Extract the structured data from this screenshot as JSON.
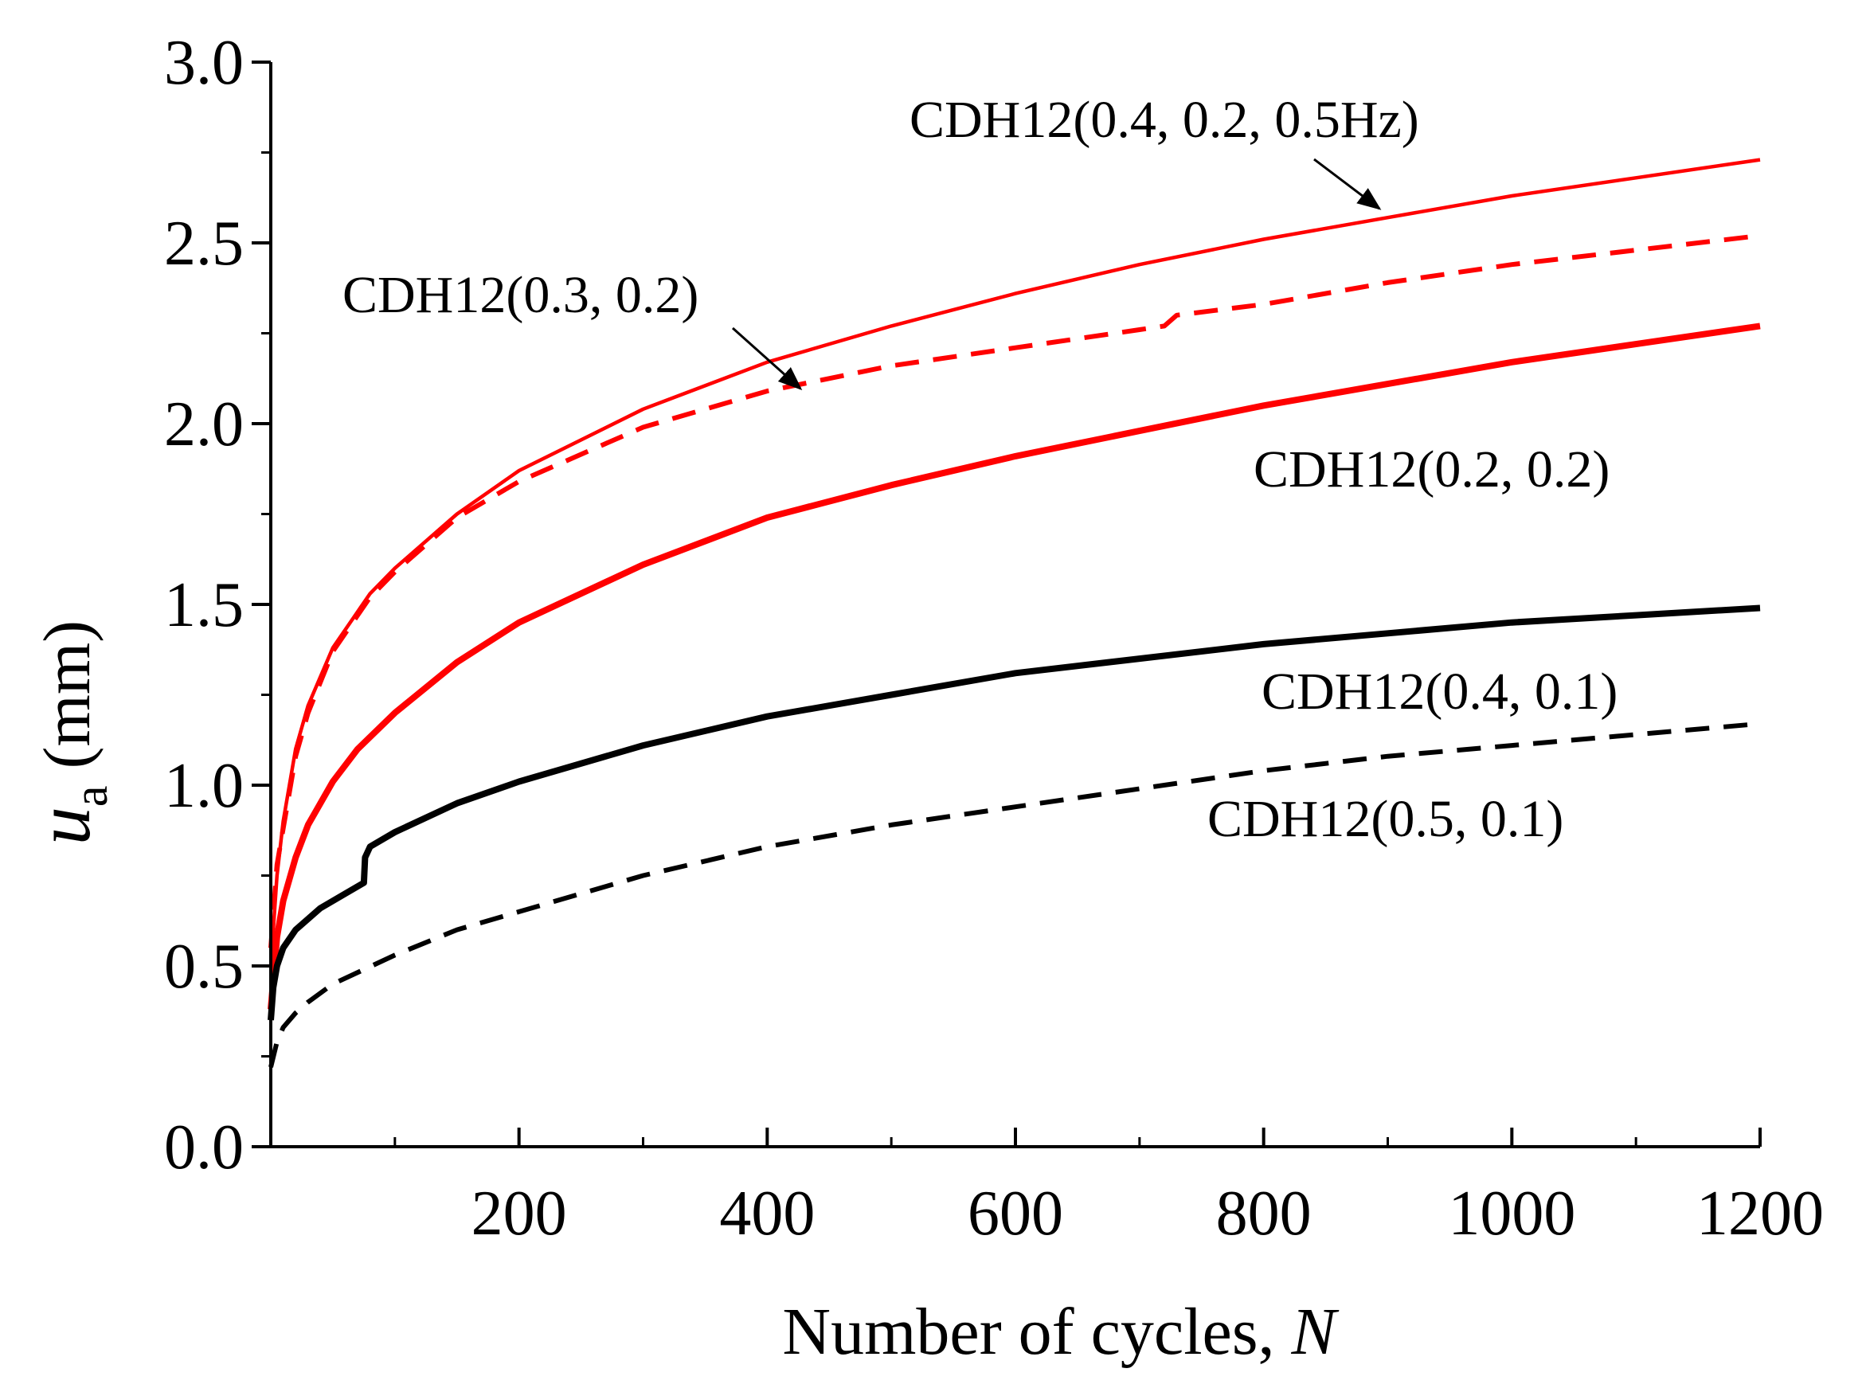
{
  "chart_data": {
    "type": "line",
    "title": "",
    "xlabel": "Number of cycles, ",
    "xlabel_var": "N",
    "ylabel_var": "u",
    "ylabel_sub": "a",
    "ylabel_unit": " (mm)",
    "xlim": [
      0,
      1200
    ],
    "ylim": [
      0.0,
      3.0
    ],
    "xticks": [
      200,
      400,
      600,
      800,
      1000,
      1200
    ],
    "xtick_labels": [
      "200",
      "400",
      "600",
      "800",
      "1000",
      "1200"
    ],
    "yticks": [
      0.0,
      0.5,
      1.0,
      1.5,
      2.0,
      2.5,
      3.0
    ],
    "ytick_labels": [
      "0.0",
      "0.5",
      "1.0",
      "1.5",
      "2.0",
      "2.5",
      "3.0"
    ],
    "grid": false,
    "colors": {
      "red": "#ff0000",
      "black": "#000000"
    },
    "series": [
      {
        "name": "CDH12(0.4, 0.2, 0.5Hz)",
        "color": "#ff0000",
        "style": "solid-thin",
        "x": [
          0,
          5,
          10,
          20,
          30,
          50,
          70,
          80,
          100,
          150,
          200,
          300,
          400,
          500,
          600,
          700,
          800,
          900,
          1000,
          1100,
          1200
        ],
        "y": [
          0.5,
          0.75,
          0.9,
          1.1,
          1.22,
          1.38,
          1.48,
          1.53,
          1.6,
          1.75,
          1.87,
          2.04,
          2.17,
          2.27,
          2.36,
          2.44,
          2.51,
          2.57,
          2.63,
          2.68,
          2.73
        ]
      },
      {
        "name": "CDH12(0.3, 0.2)",
        "color": "#ff0000",
        "style": "dashed",
        "x": [
          0,
          5,
          10,
          20,
          30,
          50,
          70,
          80,
          100,
          150,
          200,
          300,
          400,
          500,
          600,
          700,
          720,
          730,
          800,
          900,
          1000,
          1100,
          1200
        ],
        "y": [
          0.55,
          0.78,
          0.88,
          1.08,
          1.2,
          1.37,
          1.47,
          1.52,
          1.59,
          1.74,
          1.84,
          1.99,
          2.09,
          2.16,
          2.21,
          2.26,
          2.27,
          2.3,
          2.33,
          2.39,
          2.44,
          2.48,
          2.52
        ]
      },
      {
        "name": "CDH12(0.2, 0.2)",
        "color": "#ff0000",
        "style": "solid-thick",
        "x": [
          0,
          5,
          10,
          20,
          30,
          50,
          70,
          100,
          150,
          200,
          300,
          400,
          500,
          600,
          700,
          800,
          900,
          1000,
          1100,
          1200
        ],
        "y": [
          0.38,
          0.58,
          0.68,
          0.8,
          0.89,
          1.01,
          1.1,
          1.2,
          1.34,
          1.45,
          1.61,
          1.74,
          1.83,
          1.91,
          1.98,
          2.05,
          2.11,
          2.17,
          2.22,
          2.27
        ]
      },
      {
        "name": "CDH12(0.4, 0.1)",
        "color": "#000000",
        "style": "solid-thick",
        "x": [
          0,
          2,
          5,
          10,
          20,
          40,
          60,
          75,
          76,
          80,
          100,
          150,
          200,
          300,
          400,
          500,
          600,
          700,
          800,
          900,
          1000,
          1100,
          1200
        ],
        "y": [
          0.35,
          0.44,
          0.5,
          0.55,
          0.6,
          0.66,
          0.7,
          0.73,
          0.8,
          0.83,
          0.87,
          0.95,
          1.01,
          1.11,
          1.19,
          1.25,
          1.31,
          1.35,
          1.39,
          1.42,
          1.45,
          1.47,
          1.49
        ]
      },
      {
        "name": "CDH12(0.5, 0.1)",
        "color": "#000000",
        "style": "dashed",
        "x": [
          0,
          5,
          10,
          20,
          30,
          50,
          100,
          150,
          200,
          300,
          400,
          500,
          600,
          700,
          800,
          900,
          1000,
          1100,
          1200
        ],
        "y": [
          0.22,
          0.29,
          0.33,
          0.37,
          0.4,
          0.45,
          0.53,
          0.6,
          0.65,
          0.75,
          0.83,
          0.89,
          0.94,
          0.99,
          1.04,
          1.08,
          1.11,
          1.14,
          1.17
        ]
      }
    ],
    "annotations": [
      "CDH12(0.4, 0.2, 0.5Hz)",
      "CDH12(0.3, 0.2)",
      "CDH12(0.2, 0.2)",
      "CDH12(0.4, 0.1)",
      "CDH12(0.5, 0.1)"
    ]
  }
}
